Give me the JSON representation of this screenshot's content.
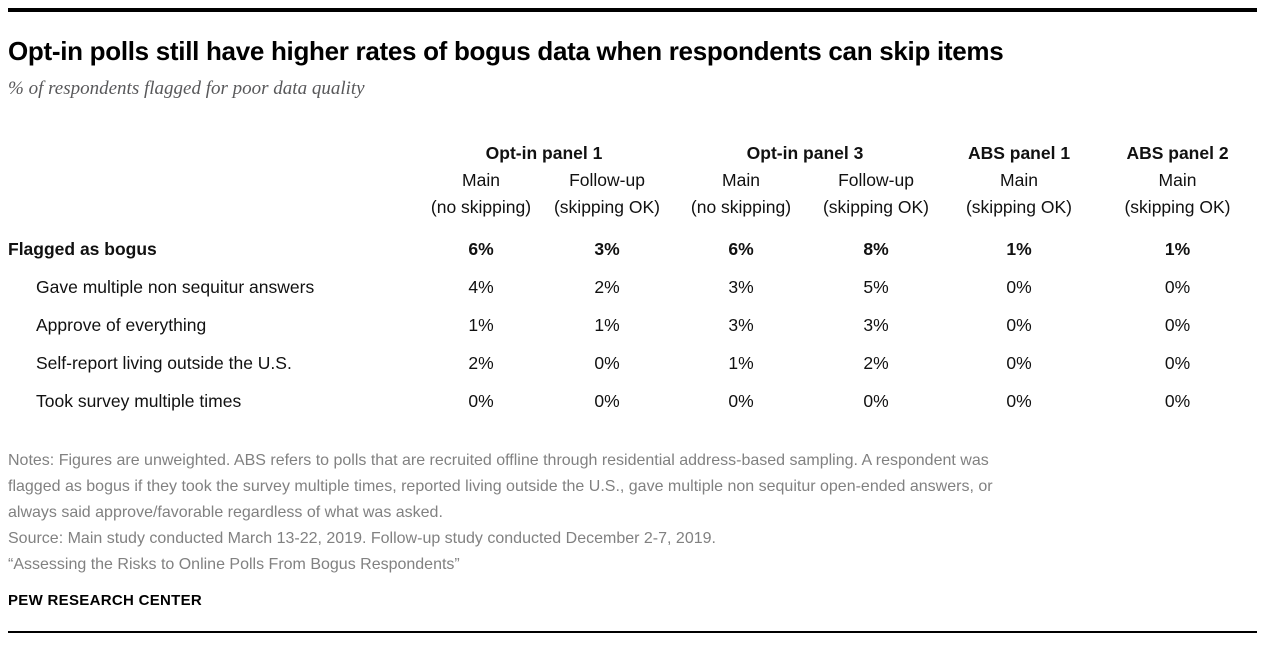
{
  "header": {
    "title": "Opt-in polls still have higher rates of bogus data when respondents can skip items",
    "subtitle": "% of respondents flagged for poor data quality"
  },
  "table": {
    "groups": [
      {
        "label": "Opt-in panel 1",
        "span": 2
      },
      {
        "label": "Opt-in panel 3",
        "span": 2
      },
      {
        "label": "ABS panel 1",
        "span": 1
      },
      {
        "label": "ABS panel 2",
        "span": 1
      }
    ],
    "sub_headers": [
      "Main",
      "Follow-up",
      "Main",
      "Follow-up",
      "Main",
      "Main"
    ],
    "sub_notes": [
      "(no skipping)",
      "(skipping OK)",
      "(no skipping)",
      "(skipping OK)",
      "(skipping OK)",
      "(skipping OK)"
    ],
    "rows": [
      {
        "label": "Flagged as bogus",
        "values": [
          "6%",
          "3%",
          "6%",
          "8%",
          "1%",
          "1%"
        ]
      },
      {
        "label": "Gave multiple non sequitur answers",
        "values": [
          "4%",
          "2%",
          "3%",
          "5%",
          "0%",
          "0%"
        ]
      },
      {
        "label": "Approve of everything",
        "values": [
          "1%",
          "1%",
          "3%",
          "3%",
          "0%",
          "0%"
        ]
      },
      {
        "label": "Self-report living outside the U.S.",
        "values": [
          "2%",
          "0%",
          "1%",
          "2%",
          "0%",
          "0%"
        ]
      },
      {
        "label": "Took survey multiple times",
        "values": [
          "0%",
          "0%",
          "0%",
          "0%",
          "0%",
          "0%"
        ]
      }
    ]
  },
  "footer": {
    "notes": "Notes: Figures are unweighted. ABS refers to polls that are recruited offline through residential address-based sampling. A respondent was\nflagged as bogus if they took the survey multiple times, reported living outside the U.S., gave multiple non sequitur open-ended answers, or\nalways said approve/favorable regardless of what was asked.",
    "source": "Source: Main study conducted March 13-22, 2019. Follow-up study conducted December 2-7, 2019.",
    "report_title": "“Assessing the Risks to Online Polls From Bogus Respondents”",
    "brand": "PEW RESEARCH CENTER"
  },
  "colors": {
    "text_black": "#000000",
    "subtitle_gray": "#58585a",
    "notes_gray": "#818181",
    "rule_black": "#000000"
  },
  "chart_data": {
    "type": "table",
    "title": "Opt-in polls still have higher rates of bogus data when respondents can skip items",
    "subtitle": "% of respondents flagged for poor data quality",
    "columns": [
      "Opt-in panel 1 — Main (no skipping)",
      "Opt-in panel 1 — Follow-up (skipping OK)",
      "Opt-in panel 3 — Main (no skipping)",
      "Opt-in panel 3 — Follow-up (skipping OK)",
      "ABS panel 1 — Main (skipping OK)",
      "ABS panel 2 — Main (skipping OK)"
    ],
    "rows": [
      {
        "label": "Flagged as bogus",
        "values_pct": [
          6,
          3,
          6,
          8,
          1,
          1
        ]
      },
      {
        "label": "Gave multiple non sequitur answers",
        "values_pct": [
          4,
          2,
          3,
          5,
          0,
          0
        ]
      },
      {
        "label": "Approve of everything",
        "values_pct": [
          1,
          1,
          3,
          3,
          0,
          0
        ]
      },
      {
        "label": "Self-report living outside the U.S.",
        "values_pct": [
          2,
          0,
          1,
          2,
          0,
          0
        ]
      },
      {
        "label": "Took survey multiple times",
        "values_pct": [
          0,
          0,
          0,
          0,
          0,
          0
        ]
      }
    ],
    "units": "percent",
    "grid": false,
    "legend": "none"
  }
}
